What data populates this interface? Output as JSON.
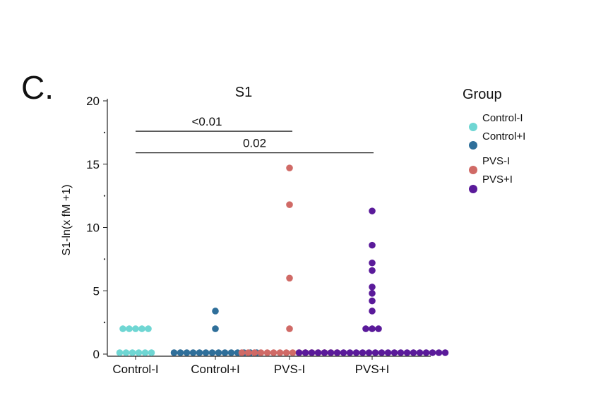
{
  "panel_label": "C.",
  "chart_data": {
    "type": "scatter",
    "title": "S1",
    "xlabel": "",
    "ylabel": "S1-ln(x fM +1)",
    "ylim": [
      0,
      20
    ],
    "yticks": [
      0,
      5,
      10,
      15,
      20
    ],
    "categories": [
      "Control-I",
      "Control+I",
      "PVS-I",
      "PVS+I"
    ],
    "series": [
      {
        "name": "Control-I",
        "color": "#6fd6d3",
        "points": [
          {
            "y": 0,
            "n": 6
          },
          {
            "y": 2,
            "n": 5
          }
        ]
      },
      {
        "name": "Control+I",
        "color": "#2f6f9a",
        "points": [
          {
            "y": 0,
            "n": 14
          },
          {
            "y": 2,
            "n": 1
          },
          {
            "y": 3.4,
            "n": 1
          }
        ]
      },
      {
        "name": "PVS-I",
        "color": "#d06a66",
        "points": [
          {
            "y": 0,
            "n": 16
          },
          {
            "y": 2,
            "n": 1
          },
          {
            "y": 6,
            "n": 1
          },
          {
            "y": 11.8,
            "n": 1
          },
          {
            "y": 14.7,
            "n": 1
          }
        ]
      },
      {
        "name": "PVS+I",
        "color": "#5a1a9a",
        "points": [
          {
            "y": 0,
            "n": 24
          },
          {
            "y": 2,
            "n": 3
          },
          {
            "y": 3.4,
            "n": 1
          },
          {
            "y": 4.2,
            "n": 1
          },
          {
            "y": 4.8,
            "n": 1
          },
          {
            "y": 5.3,
            "n": 1
          },
          {
            "y": 6.6,
            "n": 1
          },
          {
            "y": 7.2,
            "n": 1
          },
          {
            "y": 8.6,
            "n": 1
          },
          {
            "y": 11.3,
            "n": 1
          }
        ]
      }
    ],
    "annotations": [
      {
        "text": "<0.01",
        "from": "Control-I",
        "to": "PVS-I",
        "y": 17.6
      },
      {
        "text": "0.02",
        "from": "Control-I",
        "to": "PVS+I",
        "y": 15.9
      }
    ],
    "legend": {
      "title": "Group",
      "position": "right",
      "entries": [
        "Control-I",
        "Control+I",
        "PVS-I",
        "PVS+I"
      ]
    }
  }
}
